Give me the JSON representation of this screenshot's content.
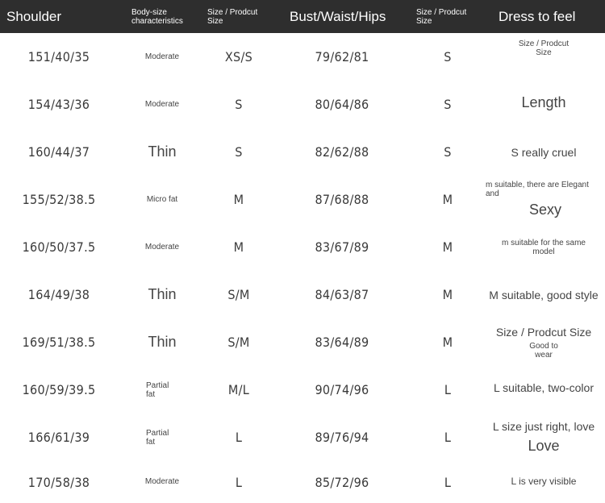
{
  "header": {
    "shoulder": "Shoulder",
    "body_size": [
      "Body-size",
      "characteristics"
    ],
    "size1": [
      "Size / Prodcut",
      "Size"
    ],
    "bwh": "Bust/Waist/Hips",
    "size2": [
      "Size / Prodcut",
      "Size"
    ],
    "feel": "Dress to feel"
  },
  "rows": [
    {
      "shoulder": "151/40/35",
      "body": "Moderate",
      "size1": "XS/S",
      "bwh": "79/62/81",
      "size2": "S",
      "feel": [
        "Size / Prodcut",
        "Size"
      ]
    },
    {
      "shoulder": "154/43/36",
      "body": "Moderate",
      "size1": "S",
      "bwh": "80/64/86",
      "size2": "S",
      "feel": [
        "Length"
      ]
    },
    {
      "shoulder": "160/44/37",
      "body": "Thin",
      "size1": "S",
      "bwh": "82/62/88",
      "size2": "S",
      "feel": [
        "S really cruel"
      ]
    },
    {
      "shoulder": "155/52/38.5",
      "body": "Micro fat",
      "size1": "M",
      "bwh": "87/68/88",
      "size2": "M",
      "feel": [
        "m suitable, there are Elegant",
        "and",
        "Sexy"
      ]
    },
    {
      "shoulder": "160/50/37.5",
      "body": "Moderate",
      "size1": "M",
      "bwh": "83/67/89",
      "size2": "M",
      "feel": [
        "m suitable for the same",
        "model"
      ]
    },
    {
      "shoulder": "164/49/38",
      "body": "Thin",
      "size1": "S/M",
      "bwh": "84/63/87",
      "size2": "M",
      "feel": [
        "M suitable, good style"
      ]
    },
    {
      "shoulder": "169/51/38.5",
      "body": "Thin",
      "size1": "S/M",
      "bwh": "83/64/89",
      "size2": "M",
      "feel": [
        "Size / Prodcut Size",
        "Good to",
        "wear"
      ]
    },
    {
      "shoulder": "160/59/39.5",
      "body": "Partial fat",
      "size1": "M/L",
      "bwh": "90/74/96",
      "size2": "L",
      "feel": [
        "L suitable, two-color"
      ]
    },
    {
      "shoulder": "166/61/39",
      "body": "Partial fat",
      "size1": "L",
      "bwh": "89/76/94",
      "size2": "L",
      "feel": [
        "L size just right, love",
        "Love"
      ]
    },
    {
      "shoulder": "170/58/38",
      "body": "Moderate",
      "size1": "L",
      "bwh": "85/72/96",
      "size2": "L",
      "feel": [
        "L is very visible"
      ]
    }
  ]
}
